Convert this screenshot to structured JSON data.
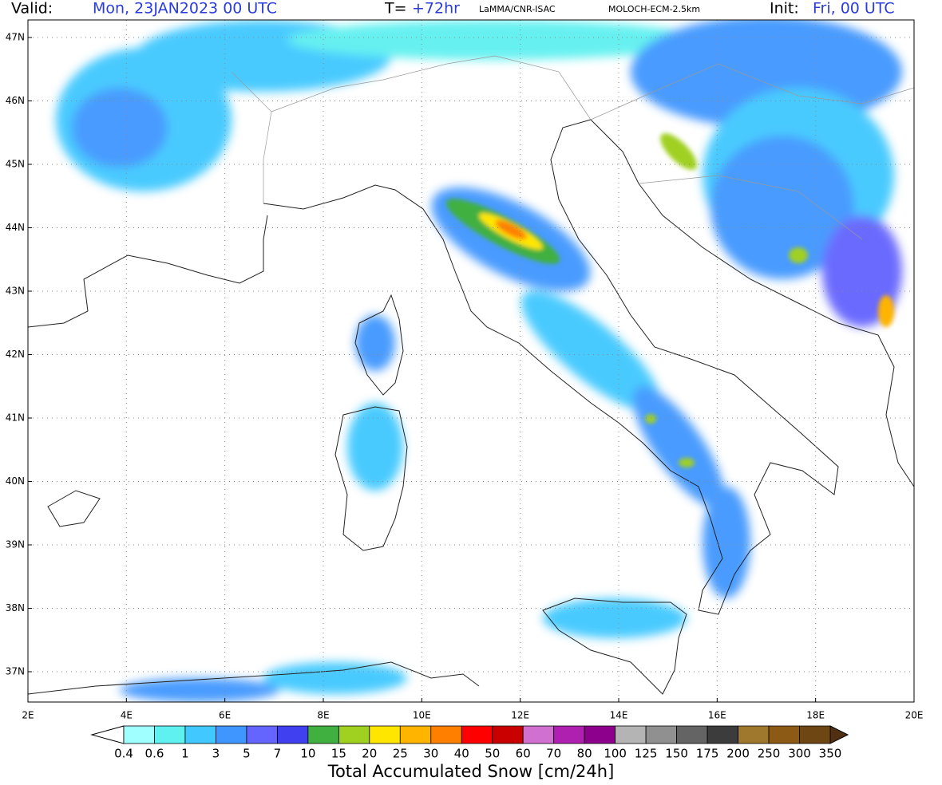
{
  "header": {
    "valid_label": "Valid:",
    "valid_date": "Mon, 23JAN2023   00 UTC",
    "forecast_label": "T=",
    "forecast_hour": "+72hr",
    "source": "LaMMA/CNR-ISAC",
    "model": "MOLOCH-ECM-2.5km",
    "init_label": "Init:",
    "init_time": "Fri, 00 UTC"
  },
  "axes": {
    "lat_labels": [
      "47N",
      "46N",
      "45N",
      "44N",
      "43N",
      "42N",
      "41N",
      "40N",
      "39N",
      "38N",
      "37N"
    ],
    "lon_labels": [
      "2E",
      "4E",
      "6E",
      "8E",
      "10E",
      "12E",
      "14E",
      "16E",
      "18E",
      "20E"
    ]
  },
  "colorbar": {
    "title": "Total Accumulated Snow [cm/24h]",
    "levels": [
      0.4,
      0.6,
      1,
      3,
      5,
      7,
      10,
      15,
      20,
      25,
      30,
      40,
      50,
      60,
      70,
      80,
      100,
      125,
      150,
      175,
      200,
      250,
      300,
      350
    ],
    "colors": [
      "#a0ffff",
      "#5ff0f0",
      "#40c8ff",
      "#4096ff",
      "#6464ff",
      "#4040f0",
      "#40b040",
      "#a0d020",
      "#ffe600",
      "#ffb400",
      "#ff8000",
      "#ff0000",
      "#c80000",
      "#d070d0",
      "#b020b0",
      "#8c008c",
      "#b4b4b4",
      "#909090",
      "#646464",
      "#3c3c3c",
      "#a0782d",
      "#8c5a14",
      "#6e4614"
    ],
    "under_color": "#ffffff",
    "over_color": "#503010"
  }
}
